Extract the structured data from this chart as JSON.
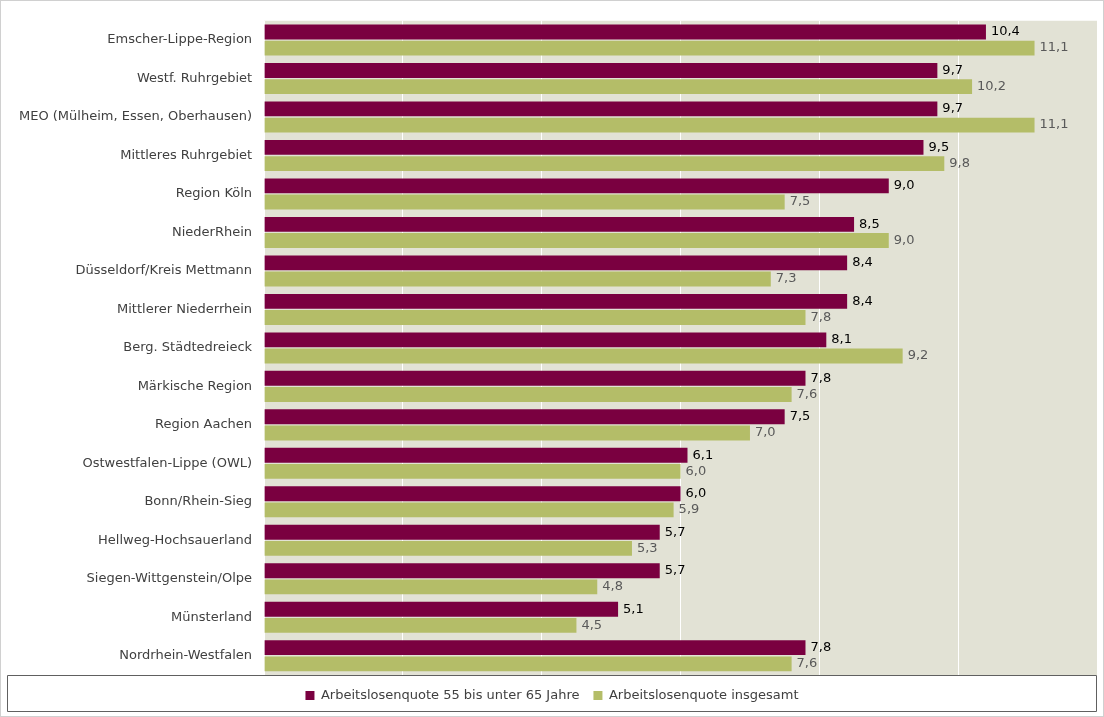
{
  "chart_data": {
    "type": "bar",
    "orientation": "horizontal",
    "categories": [
      "Emscher-Lippe-Region",
      "Westf. Ruhrgebiet",
      "MEO (Mülheim, Essen, Oberhausen)",
      "Mittleres Ruhrgebiet",
      "Region Köln",
      "NiederRhein",
      "Düsseldorf/Kreis Mettmann",
      "Mittlerer Niederrhein",
      "Berg. Städtedreieck",
      "Märkische Region",
      "Region Aachen",
      "Ostwestfalen-Lippe (OWL)",
      "Bonn/Rhein-Sieg",
      "Hellweg-Hochsauerland",
      "Siegen-Wittgenstein/Olpe",
      "Münsterland",
      "Nordrhein-Westfalen"
    ],
    "series": [
      {
        "name": "Arbeitslosenquote 55 bis unter 65 Jahre",
        "color": "#7a0040",
        "values": [
          10.4,
          9.7,
          9.7,
          9.5,
          9.0,
          8.5,
          8.4,
          8.4,
          8.1,
          7.8,
          7.5,
          6.1,
          6.0,
          5.7,
          5.7,
          5.1,
          7.8
        ],
        "value_labels": [
          "10,4",
          "9,7",
          "9,7",
          "9,5",
          "9,0",
          "8,5",
          "8,4",
          "8,4",
          "8,1",
          "7,8",
          "7,5",
          "6,1",
          "6,0",
          "5,7",
          "5,7",
          "5,1",
          "7,8"
        ]
      },
      {
        "name": "Arbeitslosenquote insgesamt",
        "color": "#b4bd68",
        "values": [
          11.1,
          10.2,
          11.1,
          9.8,
          7.5,
          9.0,
          7.3,
          7.8,
          9.2,
          7.6,
          7.0,
          6.0,
          5.9,
          5.3,
          4.8,
          4.5,
          7.6
        ],
        "value_labels": [
          "11,1",
          "10,2",
          "11,1",
          "9,8",
          "7,5",
          "9,0",
          "7,3",
          "7,8",
          "9,2",
          "7,6",
          "7,0",
          "6,0",
          "5,9",
          "5,3",
          "4,8",
          "4,5",
          "7,6"
        ]
      }
    ],
    "xlim": [
      0,
      12
    ],
    "xticks": [
      {
        "value": 0,
        "label": null
      },
      {
        "value": 2,
        "label": null
      },
      {
        "value": 4,
        "label": null
      },
      {
        "value": 6,
        "label": null
      },
      {
        "value": 8,
        "label": null
      },
      {
        "value": 10,
        "label": null
      },
      {
        "value": 12,
        "label": null
      }
    ],
    "grid": "x",
    "legend": "bottom",
    "tick_labels": "y"
  }
}
